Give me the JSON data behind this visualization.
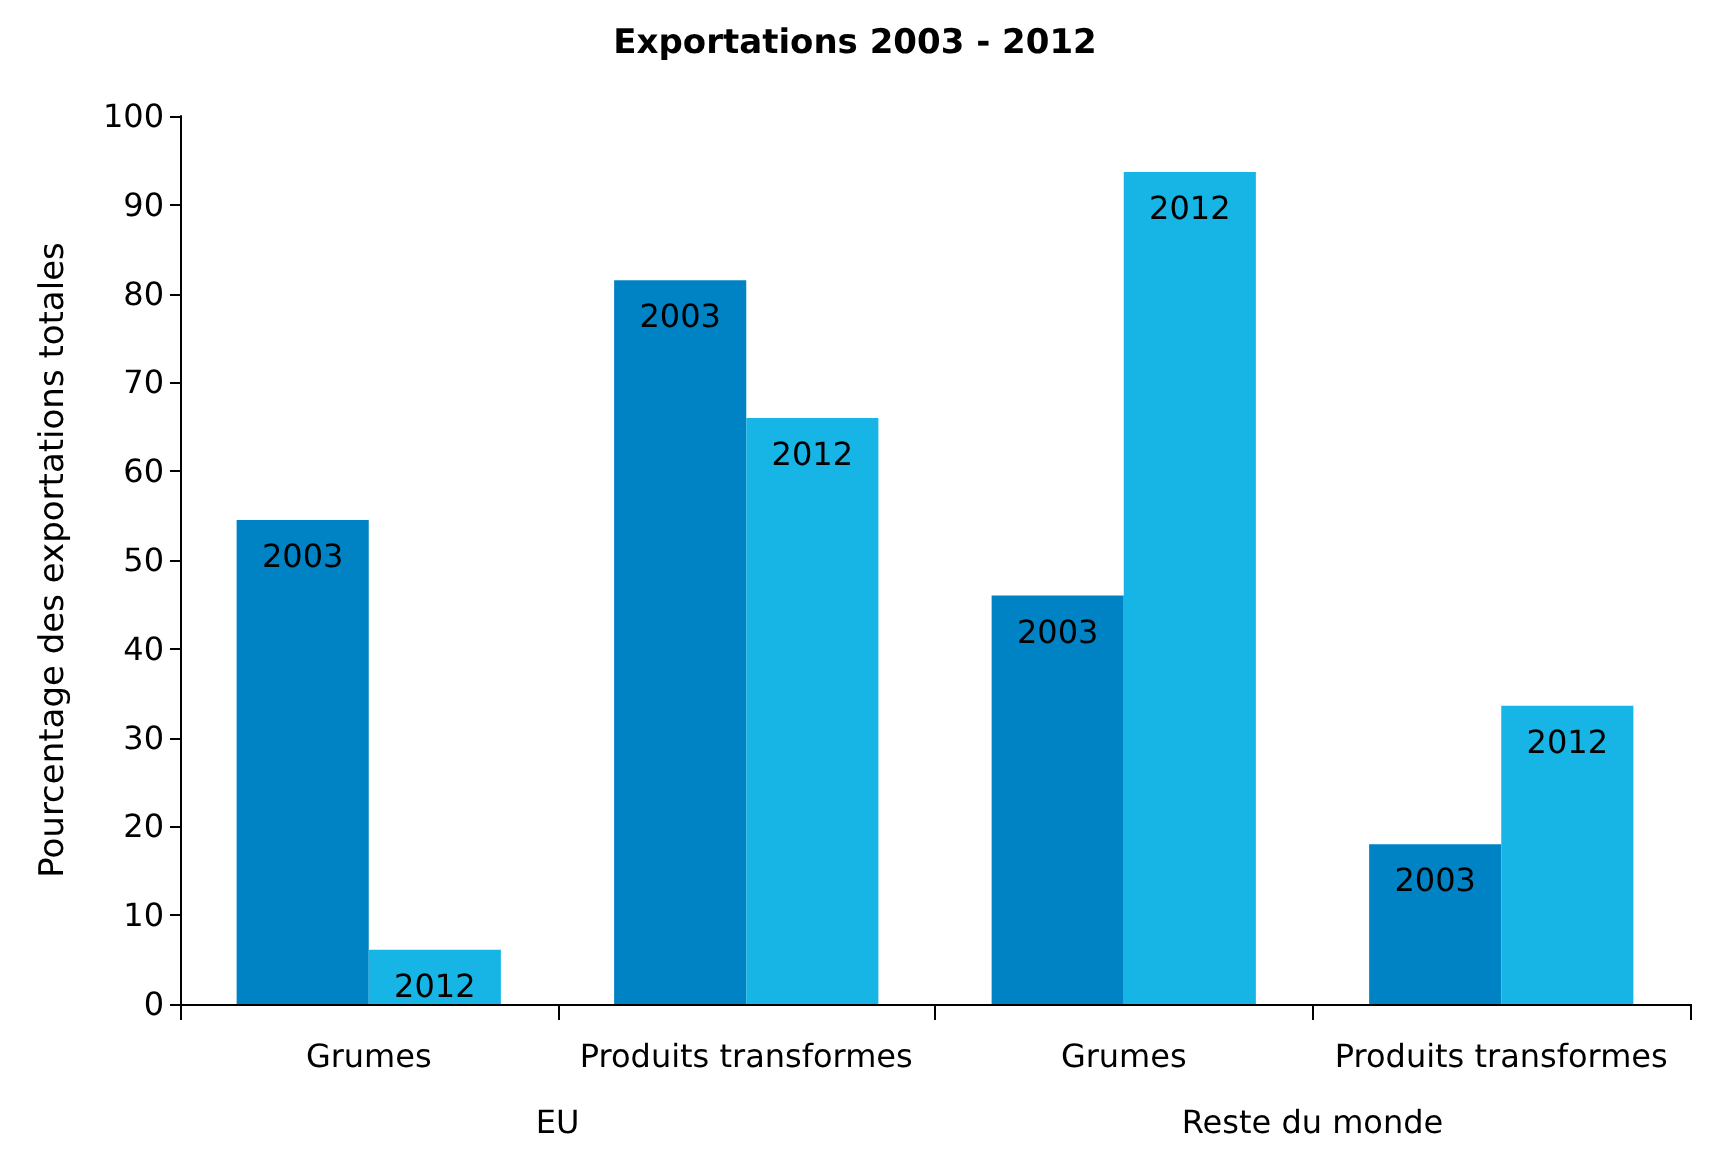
{
  "chart_data": {
    "type": "bar",
    "title": "Exportations 2003 - 2012",
    "ylabel": "Pourcentage des exportations totales",
    "categories": [
      "Grumes",
      "Produits transformes",
      "Grumes",
      "Produits transformes"
    ],
    "series": [
      {
        "name": "2003",
        "color": "#0083c4",
        "values": [
          54.5,
          81.5,
          46,
          18
        ]
      },
      {
        "name": "2012",
        "color": "#17b5e5",
        "values": [
          6.1,
          66,
          93.7,
          33.6
        ]
      }
    ],
    "annotations": [
      "EU",
      "Reste du monde"
    ],
    "ylim": [
      0,
      100
    ],
    "yticks": [
      0,
      10,
      20,
      30,
      40,
      50,
      60,
      70,
      80,
      90,
      100
    ],
    "grid": false,
    "legend": false
  }
}
